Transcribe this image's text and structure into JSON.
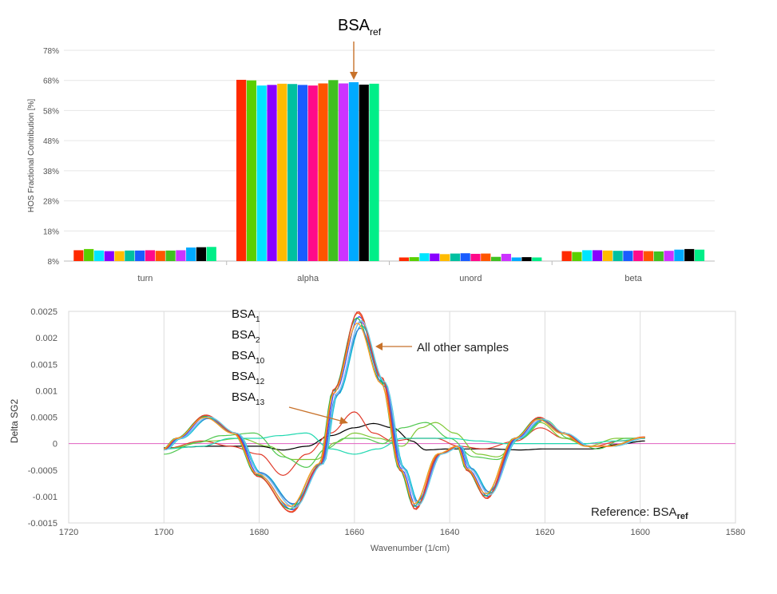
{
  "chart_data": [
    {
      "type": "bar",
      "title": "",
      "xlabel": "",
      "ylabel": "HOS Fractional Contribution [%]",
      "ylim": [
        8,
        78
      ],
      "yticks": [
        "78%",
        "68%",
        "58%",
        "48%",
        "38%",
        "28%",
        "18%",
        "8%"
      ],
      "ytick_values": [
        78,
        68,
        58,
        48,
        38,
        28,
        18,
        8
      ],
      "categories": [
        "turn",
        "alpha",
        "unord",
        "beta"
      ],
      "annotation": {
        "base": "BSA",
        "sub": "ref"
      },
      "bar_colors": [
        "#ff2a00",
        "#5ad000",
        "#00e5ff",
        "#8800ff",
        "#ffbb00",
        "#00c0a0",
        "#1a5cff",
        "#ff0a8a",
        "#ff5500",
        "#40c020",
        "#cc33ff",
        "#00aaff",
        "#000000",
        "#00ee88"
      ],
      "series_values": {
        "turn": [
          11.6,
          12.0,
          11.5,
          11.3,
          11.3,
          11.5,
          11.5,
          11.6,
          11.4,
          11.5,
          11.6,
          12.5,
          12.6,
          12.7
        ],
        "alpha": [
          68.2,
          68.0,
          66.3,
          66.5,
          66.9,
          66.8,
          66.5,
          66.3,
          67.0,
          68.1,
          67.0,
          67.4,
          66.6,
          66.9
        ],
        "unord": [
          9.2,
          9.3,
          10.6,
          10.5,
          10.3,
          10.5,
          10.6,
          10.4,
          10.5,
          9.4,
          10.4,
          9.2,
          9.3,
          9.2
        ],
        "beta": [
          11.3,
          11.0,
          11.6,
          11.6,
          11.5,
          11.4,
          11.4,
          11.5,
          11.3,
          11.2,
          11.4,
          11.8,
          12.0,
          11.8
        ]
      }
    },
    {
      "type": "line",
      "title": "",
      "xlabel": "Wavenumber (1/cm)",
      "ylabel": "Delta SG2",
      "xlim": [
        1720,
        1580
      ],
      "ylim": [
        -0.0015,
        0.0025
      ],
      "xticks": [
        "1720",
        "1700",
        "1680",
        "1660",
        "1640",
        "1620",
        "1600",
        "1580"
      ],
      "xtick_values": [
        1720,
        1700,
        1680,
        1660,
        1640,
        1620,
        1600,
        1580
      ],
      "yticks": [
        "0.0025",
        "0.002",
        "0.0015",
        "0.001",
        "0.0005",
        "0",
        "-0.0005",
        "-0.001",
        "-0.0015"
      ],
      "ytick_values": [
        0.0025,
        0.002,
        0.0015,
        0.001,
        0.0005,
        0,
        -0.0005,
        -0.001,
        -0.0015
      ],
      "x_start": 1700,
      "x_end": 1599,
      "grid": "vertical",
      "annotations": {
        "samples_list": [
          {
            "base": "BSA",
            "sub": "1"
          },
          {
            "base": "BSA",
            "sub": "2"
          },
          {
            "base": "BSA",
            "sub": "10"
          },
          {
            "base": "BSA",
            "sub": "12"
          },
          {
            "base": "BSA",
            "sub": "13"
          }
        ],
        "other": "All other samples",
        "reference_prefix": "Reference: ",
        "reference_base": "BSA",
        "reference_sub": "ref"
      },
      "major_profile": {
        "description_points": [
          [
            1700,
            -0.00012
          ],
          [
            1697,
            0.0001
          ],
          [
            1691,
            0.00052
          ],
          [
            1685,
            0.0002
          ],
          [
            1680,
            -0.0006
          ],
          [
            1673,
            -0.00125
          ],
          [
            1667,
            -0.0004
          ],
          [
            1664,
            0.001
          ],
          [
            1659,
            0.0024
          ],
          [
            1654,
            0.0012
          ],
          [
            1650,
            -0.0005
          ],
          [
            1647,
            -0.0012
          ],
          [
            1642,
            -0.0002
          ],
          [
            1638,
            -5e-05
          ],
          [
            1636,
            -0.0005
          ],
          [
            1632,
            -0.001
          ],
          [
            1626,
            0.0001
          ],
          [
            1621,
            0.00048
          ],
          [
            1616,
            0.0002
          ],
          [
            1611,
            -5e-05
          ],
          [
            1606,
            -5e-05
          ],
          [
            1599,
            0.00012
          ]
        ],
        "series_scales": [
          1.0,
          0.96,
          1.03,
          0.93,
          0.99,
          0.91,
          1.04,
          0.97,
          0.95
        ],
        "series_shifts": [
          0,
          0.3,
          -0.3,
          0.5,
          -0.5,
          0.2,
          -0.2,
          0.4,
          -0.4
        ],
        "series_colors": [
          "#3355ff",
          "#a040ff",
          "#ff5a1f",
          "#00bcd4",
          "#2bb54a",
          "#3c7bd4",
          "#e0412f",
          "#6fd0e8",
          "#ff9a20"
        ]
      },
      "minor_series": [
        {
          "color": "#000000",
          "points": [
            [
              1700,
              -8e-05
            ],
            [
              1690,
              -5e-05
            ],
            [
              1680,
              -5e-05
            ],
            [
              1675,
              -0.00012
            ],
            [
              1670,
              -5e-05
            ],
            [
              1665,
              0.00015
            ],
            [
              1660,
              0.0003
            ],
            [
              1656,
              0.00038
            ],
            [
              1652,
              0.0003
            ],
            [
              1648,
              5e-05
            ],
            [
              1645,
              -0.00012
            ],
            [
              1640,
              -0.0001
            ],
            [
              1632,
              -0.0001
            ],
            [
              1625,
              -0.00012
            ],
            [
              1620,
              -0.0001
            ],
            [
              1610,
              -0.0001
            ],
            [
              1605,
              -2e-05
            ],
            [
              1599,
              5e-05
            ]
          ]
        },
        {
          "color": "#e03a2a",
          "points": [
            [
              1700,
              -0.0001
            ],
            [
              1692,
              5e-05
            ],
            [
              1686,
              -5e-05
            ],
            [
              1680,
              -0.0002
            ],
            [
              1675,
              -0.0006
            ],
            [
              1670,
              -0.0002
            ],
            [
              1665,
              0.0002
            ],
            [
              1660,
              0.0006
            ],
            [
              1656,
              0.0002
            ],
            [
              1652,
              5e-05
            ],
            [
              1647,
              0.0001
            ],
            [
              1643,
              0.0001
            ],
            [
              1638,
              -5e-05
            ],
            [
              1633,
              -0.0001
            ],
            [
              1626,
              5e-05
            ],
            [
              1621,
              0.0003
            ],
            [
              1616,
              0.0001
            ],
            [
              1610,
              -5e-05
            ],
            [
              1604,
              5e-05
            ],
            [
              1599,
              0.00012
            ]
          ]
        },
        {
          "color": "#7fc835",
          "points": [
            [
              1700,
              -0.0001
            ],
            [
              1690,
              5e-05
            ],
            [
              1684,
              0.0001
            ],
            [
              1678,
              -5e-05
            ],
            [
              1673,
              -0.0003
            ],
            [
              1668,
              -0.0003
            ],
            [
              1664,
              2e-05
            ],
            [
              1660,
              0.0002
            ],
            [
              1655,
              0.0001
            ],
            [
              1650,
              -5e-05
            ],
            [
              1646,
              0.0003
            ],
            [
              1643,
              0.0004
            ],
            [
              1639,
              0.0002
            ],
            [
              1634,
              -0.0002
            ],
            [
              1630,
              -0.00025
            ],
            [
              1625,
              0.0001
            ],
            [
              1621,
              0.0004
            ],
            [
              1616,
              0.0001
            ],
            [
              1611,
              -5e-05
            ],
            [
              1605,
              0.0001
            ],
            [
              1599,
              0.0001
            ]
          ]
        },
        {
          "color": "#50c850",
          "points": [
            [
              1700,
              -0.0002
            ],
            [
              1693,
              2e-05
            ],
            [
              1688,
              0.00015
            ],
            [
              1681,
              0.0002
            ],
            [
              1675,
              -0.00025
            ],
            [
              1670,
              -0.00045
            ],
            [
              1666,
              -0.0001
            ],
            [
              1662,
              0.0001
            ],
            [
              1658,
              0.0001
            ],
            [
              1654,
              0.0
            ],
            [
              1650,
              0.0003
            ],
            [
              1645,
              0.0004
            ],
            [
              1640,
              0.0001
            ],
            [
              1635,
              -0.00025
            ],
            [
              1630,
              -0.0003
            ],
            [
              1625,
              0.0001
            ],
            [
              1620,
              0.00045
            ],
            [
              1615,
              0.0001
            ],
            [
              1609,
              -0.0001
            ],
            [
              1603,
              0.0001
            ],
            [
              1599,
              0.0001
            ]
          ]
        },
        {
          "color": "#20d8b0",
          "points": [
            [
              1700,
              -0.0001
            ],
            [
              1692,
              -5e-05
            ],
            [
              1686,
              0.0001
            ],
            [
              1680,
              0.0001
            ],
            [
              1676,
              0.00015
            ],
            [
              1670,
              0.0002
            ],
            [
              1665,
              -0.0001
            ],
            [
              1660,
              -0.0002
            ],
            [
              1655,
              -0.0001
            ],
            [
              1650,
              0.0001
            ],
            [
              1645,
              0.0001
            ],
            [
              1640,
              0.0001
            ],
            [
              1634,
              5e-05
            ],
            [
              1628,
              0.0
            ],
            [
              1620,
              0.0
            ],
            [
              1612,
              0.0
            ],
            [
              1605,
              5e-05
            ],
            [
              1599,
              0.0001
            ]
          ]
        }
      ]
    }
  ],
  "labels": {
    "top_axis_label": "HOS Fractional Contribution [%]",
    "bottom_axis_label": "Wavenumber (1/cm)",
    "bottom_y_label": "Delta SG2"
  }
}
